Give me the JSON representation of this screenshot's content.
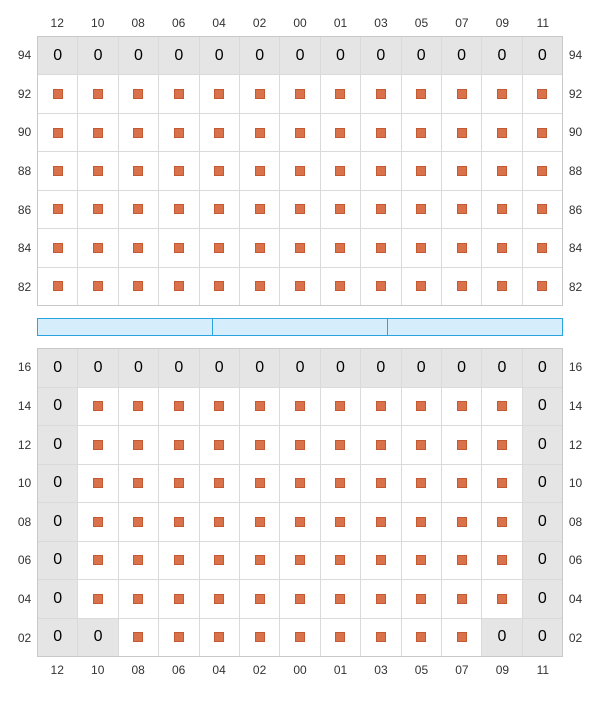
{
  "layout": {
    "columns": [
      "12",
      "10",
      "08",
      "06",
      "04",
      "02",
      "00",
      "01",
      "03",
      "05",
      "07",
      "09",
      "11"
    ],
    "top_block": {
      "rows": [
        "94",
        "92",
        "90",
        "88",
        "86",
        "84",
        "82"
      ],
      "cells": [
        [
          0,
          0,
          0,
          0,
          0,
          0,
          0,
          0,
          0,
          0,
          0,
          0,
          0
        ],
        [
          1,
          1,
          1,
          1,
          1,
          1,
          1,
          1,
          1,
          1,
          1,
          1,
          1
        ],
        [
          1,
          1,
          1,
          1,
          1,
          1,
          1,
          1,
          1,
          1,
          1,
          1,
          1
        ],
        [
          1,
          1,
          1,
          1,
          1,
          1,
          1,
          1,
          1,
          1,
          1,
          1,
          1
        ],
        [
          1,
          1,
          1,
          1,
          1,
          1,
          1,
          1,
          1,
          1,
          1,
          1,
          1
        ],
        [
          1,
          1,
          1,
          1,
          1,
          1,
          1,
          1,
          1,
          1,
          1,
          1,
          1
        ],
        [
          1,
          1,
          1,
          1,
          1,
          1,
          1,
          1,
          1,
          1,
          1,
          1,
          1
        ]
      ]
    },
    "bottom_block": {
      "rows": [
        "16",
        "14",
        "12",
        "10",
        "08",
        "06",
        "04",
        "02"
      ],
      "cells": [
        [
          0,
          0,
          0,
          0,
          0,
          0,
          0,
          0,
          0,
          0,
          0,
          0,
          0
        ],
        [
          0,
          1,
          1,
          1,
          1,
          1,
          1,
          1,
          1,
          1,
          1,
          1,
          0
        ],
        [
          0,
          1,
          1,
          1,
          1,
          1,
          1,
          1,
          1,
          1,
          1,
          1,
          0
        ],
        [
          0,
          1,
          1,
          1,
          1,
          1,
          1,
          1,
          1,
          1,
          1,
          1,
          0
        ],
        [
          0,
          1,
          1,
          1,
          1,
          1,
          1,
          1,
          1,
          1,
          1,
          1,
          0
        ],
        [
          0,
          1,
          1,
          1,
          1,
          1,
          1,
          1,
          1,
          1,
          1,
          1,
          0
        ],
        [
          0,
          1,
          1,
          1,
          1,
          1,
          1,
          1,
          1,
          1,
          1,
          1,
          0
        ],
        [
          0,
          0,
          1,
          1,
          1,
          1,
          1,
          1,
          1,
          1,
          1,
          0,
          0
        ]
      ]
    },
    "separator_segments": 3
  },
  "style": {
    "marker_color": "#d9714a",
    "marker_border": "#c45a33",
    "empty_bg": "#e5e5e5",
    "filled_bg": "#ffffff",
    "grid_border": "#c9c9c9",
    "grid_line": "#dadada",
    "separator_bg": "#d6eefb",
    "separator_border": "#2aa3e0",
    "label_color": "#333333",
    "label_fontsize": 12
  }
}
